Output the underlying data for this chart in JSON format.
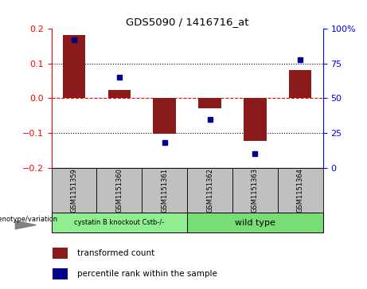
{
  "title": "GDS5090 / 1416716_at",
  "samples": [
    "GSM1151359",
    "GSM1151360",
    "GSM1151361",
    "GSM1151362",
    "GSM1151363",
    "GSM1151364"
  ],
  "transformed_count": [
    0.182,
    0.025,
    -0.103,
    -0.03,
    -0.122,
    0.082
  ],
  "percentile_rank": [
    92,
    65,
    18,
    35,
    10,
    78
  ],
  "group1_label": "cystatin B knockout Cstb-/-",
  "group2_label": "wild type",
  "group1_color": "#90EE90",
  "group2_color": "#77DD77",
  "bar_color": "#8B1A1A",
  "dot_color": "#00008B",
  "ylim_left": [
    -0.2,
    0.2
  ],
  "ylim_right": [
    0,
    100
  ],
  "yticks_left": [
    -0.2,
    -0.1,
    0.0,
    0.1,
    0.2
  ],
  "yticks_right": [
    0,
    25,
    50,
    75,
    100
  ],
  "legend_label1": "transformed count",
  "legend_label2": "percentile rank within the sample",
  "sample_box_color": "#C0C0C0",
  "background_color": "#ffffff"
}
